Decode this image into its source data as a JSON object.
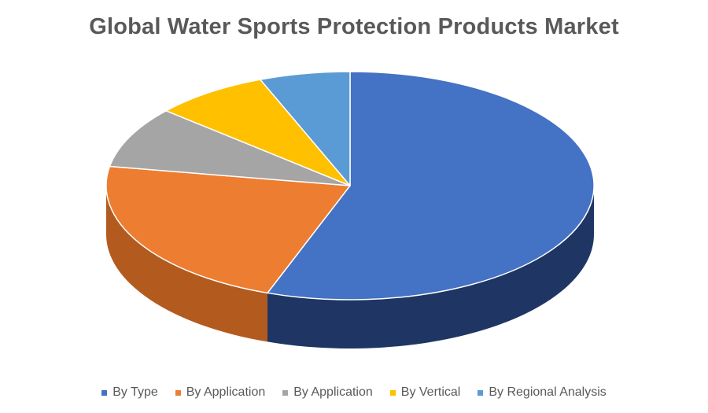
{
  "chart_data": {
    "type": "pie",
    "title": "Global Water Sports Protection Products Market",
    "categories": [
      "By Type",
      "By Application",
      "By Application",
      "By Vertical",
      "By Regional Analysis"
    ],
    "values": [
      55.5,
      22.2,
      8.7,
      7.6,
      6.0
    ],
    "colors": [
      "#4472C4",
      "#ED7D31",
      "#A5A5A5",
      "#FFC000",
      "#5B9BD5"
    ],
    "side_colors": [
      "#1F3664",
      "#B35B1F",
      "#7A7A7A",
      "#B88A00",
      "#3F73A3"
    ],
    "style": "3d",
    "legend_position": "bottom"
  }
}
